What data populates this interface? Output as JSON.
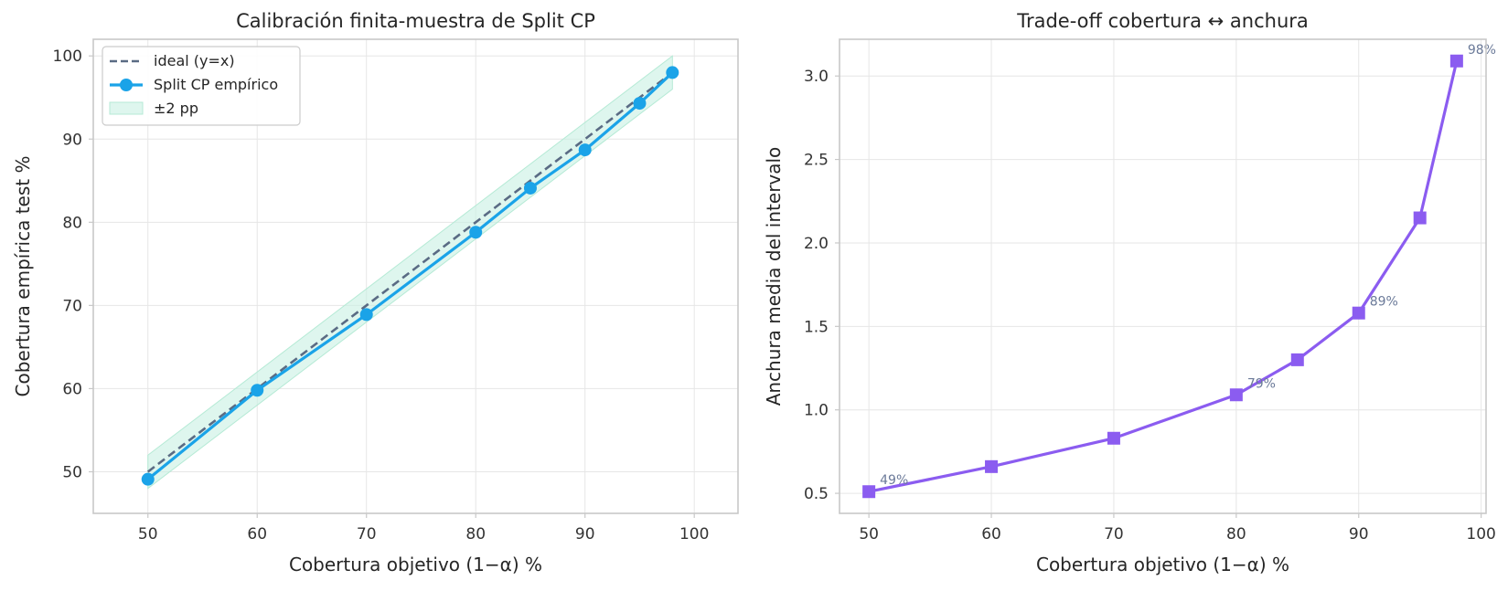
{
  "chart_data": [
    {
      "type": "line",
      "title": "Calibración finita-muestra de Split CP",
      "xlabel": "Cobertura objetivo (1−α) %",
      "ylabel": "Cobertura empírica test %",
      "xlim": [
        45,
        104
      ],
      "ylim": [
        45,
        102
      ],
      "xticks": [
        50,
        60,
        70,
        80,
        90,
        100
      ],
      "yticks": [
        50,
        60,
        70,
        80,
        90,
        100
      ],
      "grid": true,
      "legend_position": "top-left",
      "colors": {
        "ideal": "#5a6b84",
        "empirical": "#1aa3e8",
        "band": "#c8f0e2"
      },
      "series": [
        {
          "name": "ideal (y=x)",
          "style": "dashed",
          "x": [
            50,
            98
          ],
          "y": [
            50,
            98
          ]
        },
        {
          "name": "Split CP empírico",
          "style": "solid-markers",
          "x": [
            50,
            60,
            70,
            80,
            85,
            90,
            95,
            98
          ],
          "y": [
            49.1,
            59.8,
            68.9,
            78.8,
            84.1,
            88.7,
            94.3,
            98.0
          ]
        },
        {
          "name": "±2 pp",
          "style": "band",
          "x": [
            50,
            98
          ],
          "lower": [
            48,
            96
          ],
          "upper": [
            52,
            100
          ]
        }
      ]
    },
    {
      "type": "line",
      "title": "Trade-off cobertura ↔ anchura",
      "xlabel": "Cobertura objetivo (1−α) %",
      "ylabel": "Anchura media del intervalo",
      "xlim": [
        47.6,
        100.4
      ],
      "ylim": [
        0.38,
        3.22
      ],
      "xticks": [
        50,
        60,
        70,
        80,
        90,
        100
      ],
      "yticks": [
        0.5,
        1.0,
        1.5,
        2.0,
        2.5,
        3.0
      ],
      "grid": true,
      "colors": {
        "line": "#8b5cf0"
      },
      "series": [
        {
          "x": [
            50,
            60,
            70,
            80,
            85,
            90,
            95,
            98
          ],
          "y": [
            0.51,
            0.66,
            0.83,
            1.09,
            1.3,
            1.58,
            2.15,
            3.09
          ]
        }
      ],
      "annotations": [
        {
          "x": 50,
          "y": 0.51,
          "text": "49%"
        },
        {
          "x": 80,
          "y": 1.09,
          "text": "79%"
        },
        {
          "x": 90,
          "y": 1.58,
          "text": "89%"
        },
        {
          "x": 98,
          "y": 3.09,
          "text": "98%"
        }
      ]
    }
  ]
}
